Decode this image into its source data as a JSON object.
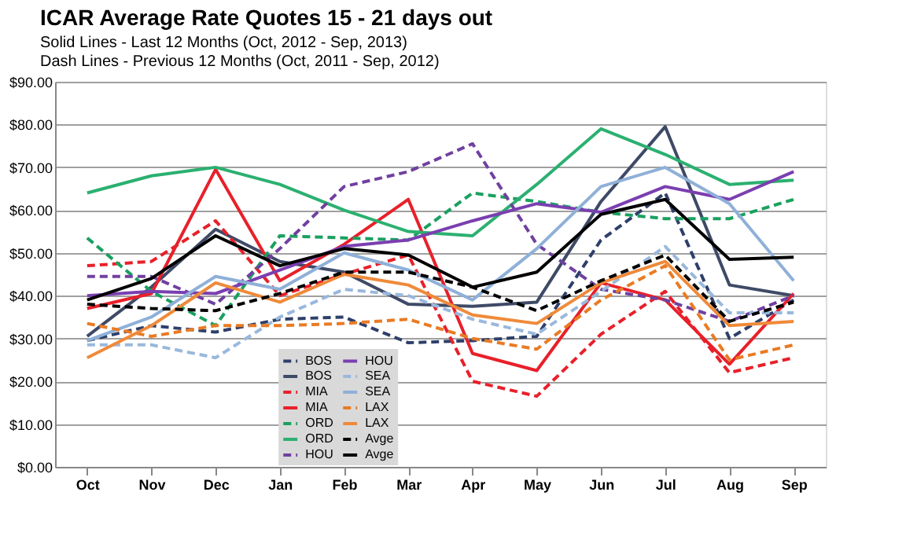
{
  "chart_data": {
    "type": "line",
    "title": "ICAR Average Rate  Quotes 15 - 21 days out",
    "subtitle": "Solid Lines - Last 12 Months (Oct, 2012 -  Sep, 2013)\nDash Lines -  Previous 12 Months (Oct, 2011 - Sep, 2012)",
    "categories": [
      "Oct",
      "Nov",
      "Dec",
      "Jan",
      "Feb",
      "Mar",
      "Apr",
      "May",
      "Jun",
      "Jul",
      "Aug",
      "Sep"
    ],
    "series": [
      {
        "name": "BOS",
        "color": "#2e3f6a",
        "line_style": "dashed",
        "values": [
          29.5,
          33,
          31.5,
          34.5,
          35,
          29,
          29.5,
          30.5,
          53,
          64,
          30,
          39
        ]
      },
      {
        "name": "BOS",
        "color": "#3e4a66",
        "line_style": "solid",
        "values": [
          30.5,
          42,
          55.5,
          48,
          45.5,
          38,
          37.5,
          38.5,
          62,
          79.5,
          42.5,
          40
        ]
      },
      {
        "name": "MIA",
        "color": "#e8202a",
        "line_style": "dashed",
        "values": [
          47,
          48,
          57.5,
          40,
          45,
          49.5,
          20,
          16.5,
          31,
          41,
          22,
          25.5
        ]
      },
      {
        "name": "MIA",
        "color": "#e8202a",
        "line_style": "solid",
        "values": [
          37,
          40.5,
          69.5,
          43.5,
          52,
          62.5,
          26.5,
          22.5,
          43,
          39,
          24,
          40.5
        ]
      },
      {
        "name": "ORD",
        "color": "#1aa060",
        "line_style": "dashed",
        "values": [
          53.5,
          41,
          33,
          54,
          53.5,
          53,
          64,
          62,
          59.5,
          58,
          58,
          62.5
        ]
      },
      {
        "name": "ORD",
        "color": "#2bb070",
        "line_style": "solid",
        "values": [
          64,
          68,
          70,
          66,
          60,
          55,
          54,
          66,
          79,
          73,
          66,
          67
        ]
      },
      {
        "name": "HOU",
        "color": "#7040a0",
        "line_style": "dashed",
        "values": [
          44.5,
          44.5,
          38,
          51,
          65.5,
          69,
          75.5,
          52,
          41.5,
          39,
          34,
          40
        ]
      },
      {
        "name": "HOU",
        "color": "#7a3fb0",
        "line_style": "solid",
        "values": [
          40,
          41,
          40.5,
          46,
          51.5,
          53,
          57.5,
          61.5,
          59.5,
          65.5,
          62.5,
          69
        ]
      },
      {
        "name": "SEA",
        "color": "#9ab8dd",
        "line_style": "dashed",
        "values": [
          28.5,
          28.5,
          25.5,
          35,
          41.5,
          40,
          34.5,
          31,
          41,
          51.5,
          36,
          36
        ]
      },
      {
        "name": "SEA",
        "color": "#8fb0d8",
        "line_style": "solid",
        "values": [
          29.5,
          35,
          44.5,
          41.5,
          50,
          46,
          39,
          51,
          65.5,
          70,
          61.5,
          43.5
        ]
      },
      {
        "name": "LAX",
        "color": "#e97b24",
        "line_style": "dashed",
        "values": [
          33.5,
          30.5,
          33,
          33,
          33.5,
          34.5,
          30,
          27.5,
          39,
          47,
          25,
          28.5
        ]
      },
      {
        "name": "LAX",
        "color": "#ef8a3a",
        "line_style": "solid",
        "values": [
          25.5,
          33,
          43,
          38.5,
          45,
          42.5,
          35.5,
          33.5,
          43,
          48,
          33,
          34
        ]
      },
      {
        "name": "Avge",
        "color": "#000000",
        "line_style": "dashed",
        "values": [
          38,
          37,
          36.5,
          40.5,
          45.5,
          45.5,
          42,
          36.5,
          43.5,
          49.5,
          34,
          38.5
        ]
      },
      {
        "name": "Avge",
        "color": "#000000",
        "line_style": "solid",
        "values": [
          39,
          44,
          54,
          47,
          51,
          49.5,
          42,
          45.5,
          59,
          62.5,
          48.5,
          49
        ]
      }
    ],
    "ylim": [
      0,
      90
    ],
    "yticks": [
      {
        "value": 0,
        "label": "$0.00"
      },
      {
        "value": 10,
        "label": "$10.00"
      },
      {
        "value": 20,
        "label": "$20.00"
      },
      {
        "value": 30,
        "label": "$30.00"
      },
      {
        "value": 40,
        "label": "$40.00"
      },
      {
        "value": 50,
        "label": "$50.00"
      },
      {
        "value": 60,
        "label": "$60.00"
      },
      {
        "value": 70,
        "label": "$70.00"
      },
      {
        "value": 80,
        "label": "$80.00"
      },
      {
        "value": 90,
        "label": "$90.00"
      }
    ],
    "grid": "y",
    "legend": "bottom",
    "marker": "none"
  }
}
